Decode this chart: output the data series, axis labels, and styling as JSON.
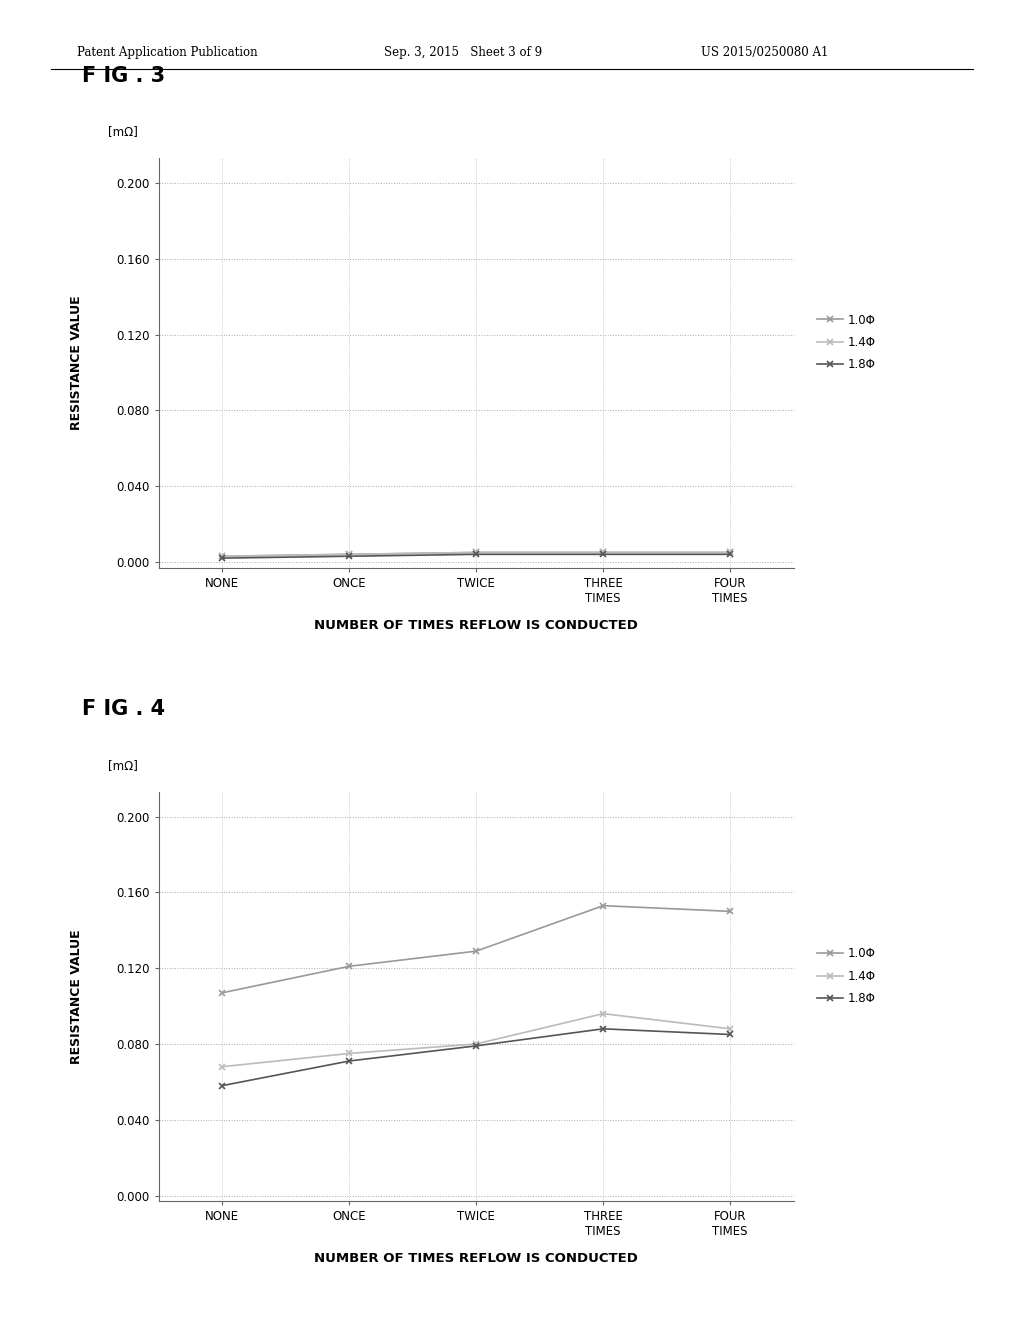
{
  "header_left": "Patent Application Publication",
  "header_mid": "Sep. 3, 2015   Sheet 3 of 9",
  "header_right": "US 2015/0250080 A1",
  "fig3_title": "F IG . 3",
  "fig4_title": "F IG . 4",
  "xlabel": "NUMBER OF TIMES REFLOW IS CONDUCTED",
  "ylabel": "RESISTANCE VALUE",
  "yunits": "[mΩ]",
  "xtick_labels": [
    "NONE",
    "ONCE",
    "TWICE",
    "THREE\nTIMES",
    "FOUR\nTIMES"
  ],
  "yticks": [
    0.0,
    0.04,
    0.08,
    0.12,
    0.16,
    0.2
  ],
  "ylim": [
    -0.003,
    0.213
  ],
  "legend_labels": [
    "1.0Φ",
    "1.4Φ",
    "1.8Φ"
  ],
  "fig3_data": {
    "series1": [
      0.003,
      0.004,
      0.005,
      0.005,
      0.005
    ],
    "series2": [
      0.003,
      0.004,
      0.005,
      0.005,
      0.005
    ],
    "series3": [
      0.002,
      0.003,
      0.004,
      0.004,
      0.004
    ]
  },
  "fig4_data": {
    "series1": [
      0.107,
      0.121,
      0.129,
      0.153,
      0.15
    ],
    "series2": [
      0.068,
      0.075,
      0.08,
      0.096,
      0.088
    ],
    "series3": [
      0.058,
      0.071,
      0.079,
      0.088,
      0.085
    ]
  },
  "line_colors": [
    "#999999",
    "#bbbbbb",
    "#555555"
  ],
  "background_color": "#ffffff",
  "grid_color": "#aaaaaa",
  "marker_size": 5
}
